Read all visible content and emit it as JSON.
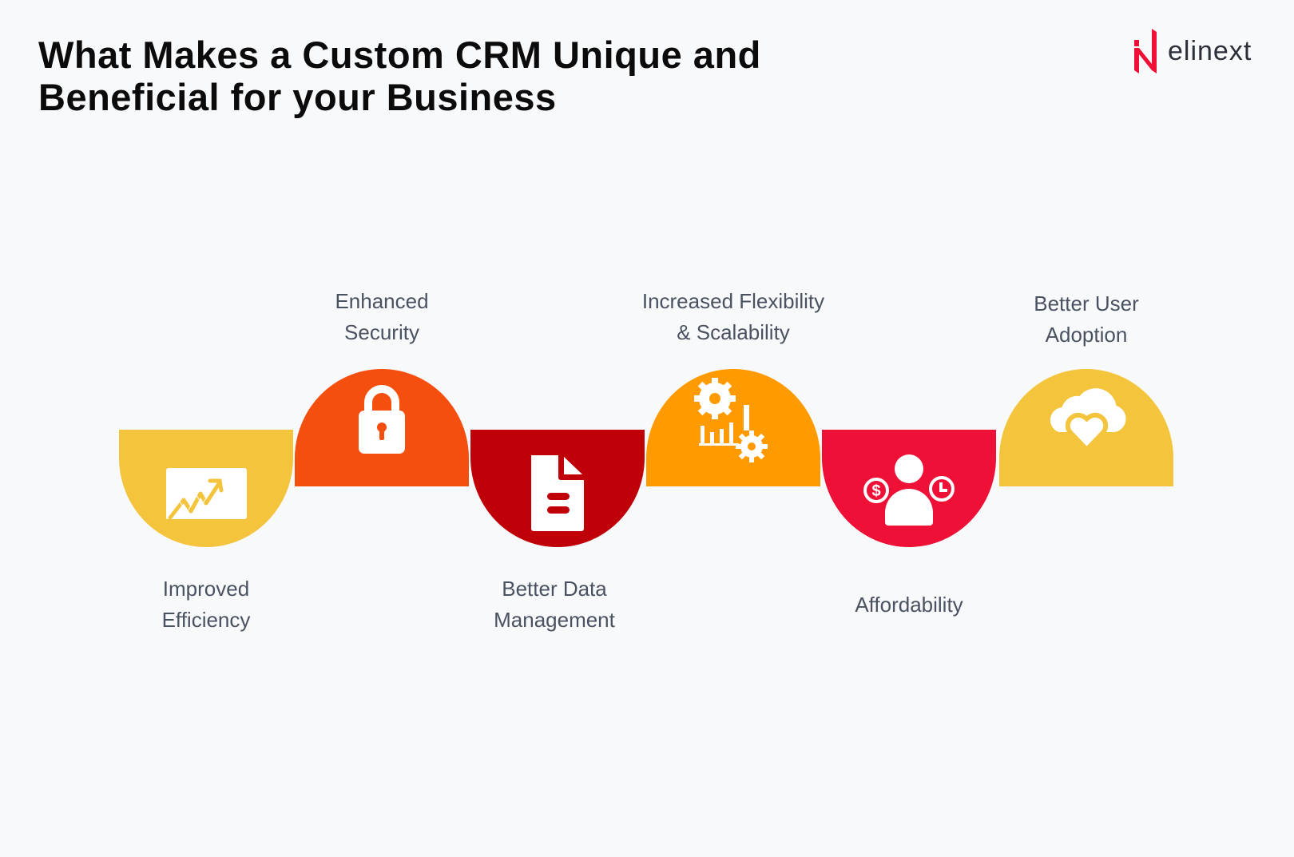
{
  "title": {
    "line1": "What Makes a Custom CRM Unique and",
    "line2": "Beneficial for your Business"
  },
  "logo": {
    "text": "elinext",
    "color": "#EE1037"
  },
  "steps": [
    {
      "label1": "Improved",
      "label2": "Efficiency",
      "icon": "chart-growth-icon",
      "color": "#F4C43C",
      "direction": "down"
    },
    {
      "label1": "Enhanced",
      "label2": "Security",
      "icon": "padlock-icon",
      "color": "#F54F0F",
      "direction": "up"
    },
    {
      "label1": "Better Data",
      "label2": "Management",
      "icon": "document-icon",
      "color": "#C00008",
      "direction": "down"
    },
    {
      "label1": "Increased Flexibility",
      "label2": "& Scalability",
      "icon": "gears-chart-icon",
      "color": "#FF9A00",
      "direction": "up"
    },
    {
      "label1": "Affordability",
      "label2": "",
      "icon": "user-money-time-icon",
      "color": "#EE1037",
      "direction": "down"
    },
    {
      "label1": "Better User",
      "label2": "Adoption",
      "icon": "cloud-heart-icon",
      "color": "#F4C43C",
      "direction": "up"
    }
  ]
}
